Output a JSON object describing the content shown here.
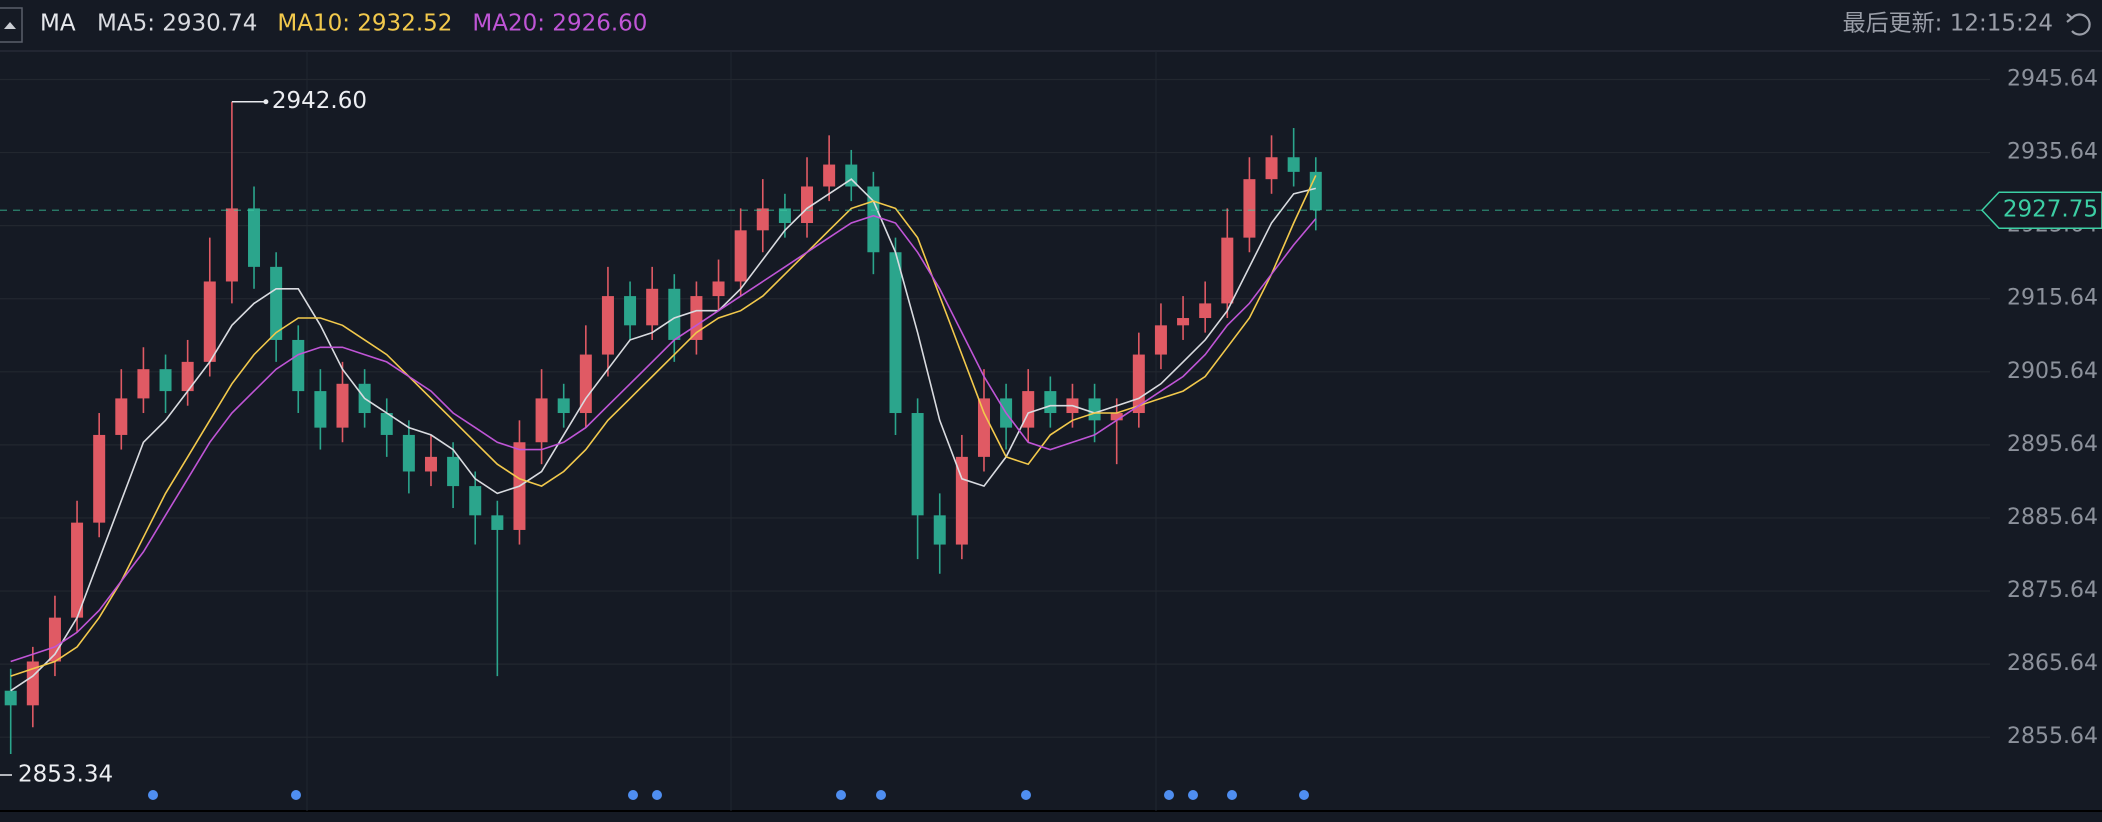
{
  "chart_data": {
    "type": "candlestick",
    "indicator": "MA",
    "update_text": "最后更新: 12:15:24",
    "up_color": "#e05a64",
    "down_color": "#2ba58c",
    "open": [
      2862,
      2860,
      2866,
      2872,
      2885,
      2897,
      2902,
      2906,
      2903,
      2907,
      2918,
      2928,
      2920,
      2910,
      2903,
      2898,
      2904,
      2900,
      2897,
      2892,
      2894,
      2890,
      2886,
      2884,
      2896,
      2902,
      2900,
      2908,
      2916,
      2912,
      2917,
      2910,
      2916,
      2918,
      2925,
      2928,
      2926,
      2931,
      2934,
      2931,
      2922,
      2900,
      2886,
      2882,
      2894,
      2902,
      2898,
      2903,
      2900,
      2902,
      2899,
      2900,
      2908,
      2912,
      2913,
      2915,
      2924,
      2932,
      2935,
      2933
    ],
    "high": [
      2865,
      2868,
      2875,
      2888,
      2900,
      2906,
      2909,
      2908,
      2910,
      2924,
      2942.6,
      2931,
      2922,
      2912,
      2906,
      2907,
      2906,
      2902,
      2899,
      2897,
      2896,
      2892,
      2888,
      2899,
      2906,
      2904,
      2912,
      2920,
      2918,
      2920,
      2919,
      2918,
      2921,
      2928,
      2932,
      2930,
      2935,
      2938,
      2936,
      2933,
      2924,
      2902,
      2889,
      2897,
      2906,
      2904,
      2906,
      2905,
      2904,
      2904,
      2902,
      2911,
      2915,
      2916,
      2918,
      2928,
      2935,
      2938,
      2939,
      2935
    ],
    "low": [
      2853.34,
      2857,
      2864,
      2870,
      2883,
      2895,
      2900,
      2900,
      2901,
      2905,
      2915,
      2917,
      2907,
      2900,
      2895,
      2896,
      2898,
      2894,
      2889,
      2890,
      2887,
      2882,
      2864,
      2882,
      2893,
      2898,
      2898,
      2905,
      2910,
      2910,
      2907,
      2908,
      2914,
      2916,
      2922,
      2924,
      2924,
      2929,
      2929,
      2919,
      2897,
      2880,
      2878,
      2880,
      2892,
      2895,
      2896,
      2898,
      2898,
      2896,
      2893,
      2898,
      2906,
      2910,
      2911,
      2913,
      2922,
      2930,
      2931,
      2925
    ],
    "close": [
      2860,
      2866,
      2872,
      2885,
      2897,
      2902,
      2906,
      2903,
      2907,
      2918,
      2928,
      2920,
      2910,
      2903,
      2898,
      2904,
      2900,
      2897,
      2892,
      2894,
      2890,
      2886,
      2884,
      2896,
      2902,
      2900,
      2908,
      2916,
      2912,
      2917,
      2910,
      2916,
      2918,
      2925,
      2928,
      2926,
      2931,
      2934,
      2931,
      2922,
      2900,
      2886,
      2882,
      2894,
      2902,
      2898,
      2903,
      2900,
      2902,
      2899,
      2900,
      2908,
      2912,
      2913,
      2915,
      2924,
      2932,
      2935,
      2933,
      2927.75
    ],
    "series": [
      {
        "label": "MA5: 2930.74",
        "color": "#d9dbe0",
        "values": [
          2862,
          2864,
          2867,
          2872,
          2880,
          2888,
          2896,
          2899,
          2903,
          2907,
          2912,
          2915,
          2917,
          2917,
          2912,
          2906,
          2902,
          2900,
          2898,
          2897,
          2895,
          2891,
          2889,
          2890,
          2892,
          2897,
          2902,
          2906,
          2910,
          2911,
          2913,
          2914,
          2914,
          2917,
          2921,
          2925,
          2928,
          2930,
          2932,
          2929,
          2922,
          2911,
          2899,
          2891,
          2890,
          2894,
          2900,
          2901,
          2901,
          2900,
          2901,
          2902,
          2904,
          2907,
          2910,
          2914,
          2920,
          2926,
          2930,
          2930.74
        ]
      },
      {
        "label": "MA10: 2932.52",
        "color": "#f2c94c",
        "values": [
          2864,
          2865,
          2866,
          2868,
          2872,
          2877,
          2883,
          2889,
          2894,
          2899,
          2904,
          2908,
          2911,
          2913,
          2913,
          2912,
          2910,
          2908,
          2905,
          2902,
          2899,
          2896,
          2893,
          2891,
          2890,
          2892,
          2895,
          2899,
          2902,
          2905,
          2908,
          2911,
          2913,
          2914,
          2916,
          2919,
          2922,
          2925,
          2928,
          2929,
          2928,
          2924,
          2916,
          2908,
          2900,
          2894,
          2893,
          2897,
          2899,
          2900,
          2900,
          2901,
          2902,
          2903,
          2905,
          2909,
          2913,
          2919,
          2926,
          2932.52
        ]
      },
      {
        "label": "MA20: 2926.60",
        "color": "#bf55d6",
        "values": [
          2866,
          2867,
          2868,
          2870,
          2873,
          2877,
          2881,
          2886,
          2891,
          2896,
          2900,
          2903,
          2906,
          2908,
          2909,
          2909,
          2908,
          2907,
          2905,
          2903,
          2900,
          2898,
          2896,
          2895,
          2895,
          2896,
          2898,
          2901,
          2904,
          2907,
          2910,
          2912,
          2914,
          2916,
          2918,
          2920,
          2922,
          2924,
          2926,
          2927,
          2926,
          2922,
          2917,
          2911,
          2905,
          2900,
          2896,
          2895,
          2896,
          2897,
          2899,
          2901,
          2903,
          2905,
          2908,
          2912,
          2915,
          2919,
          2923,
          2926.6
        ]
      }
    ],
    "ylim": [
      2845.54,
      2949.54
    ],
    "yticks": [
      2945.64,
      2935.64,
      2925.64,
      2915.64,
      2905.64,
      2895.64,
      2885.64,
      2875.64,
      2865.64,
      2855.64
    ],
    "grid": true,
    "high_marker": {
      "value": 2942.6,
      "label": "2942.60"
    },
    "low_marker": 2853.34,
    "last_price": 2927.75,
    "last_price_color": "#3ccfa4"
  }
}
